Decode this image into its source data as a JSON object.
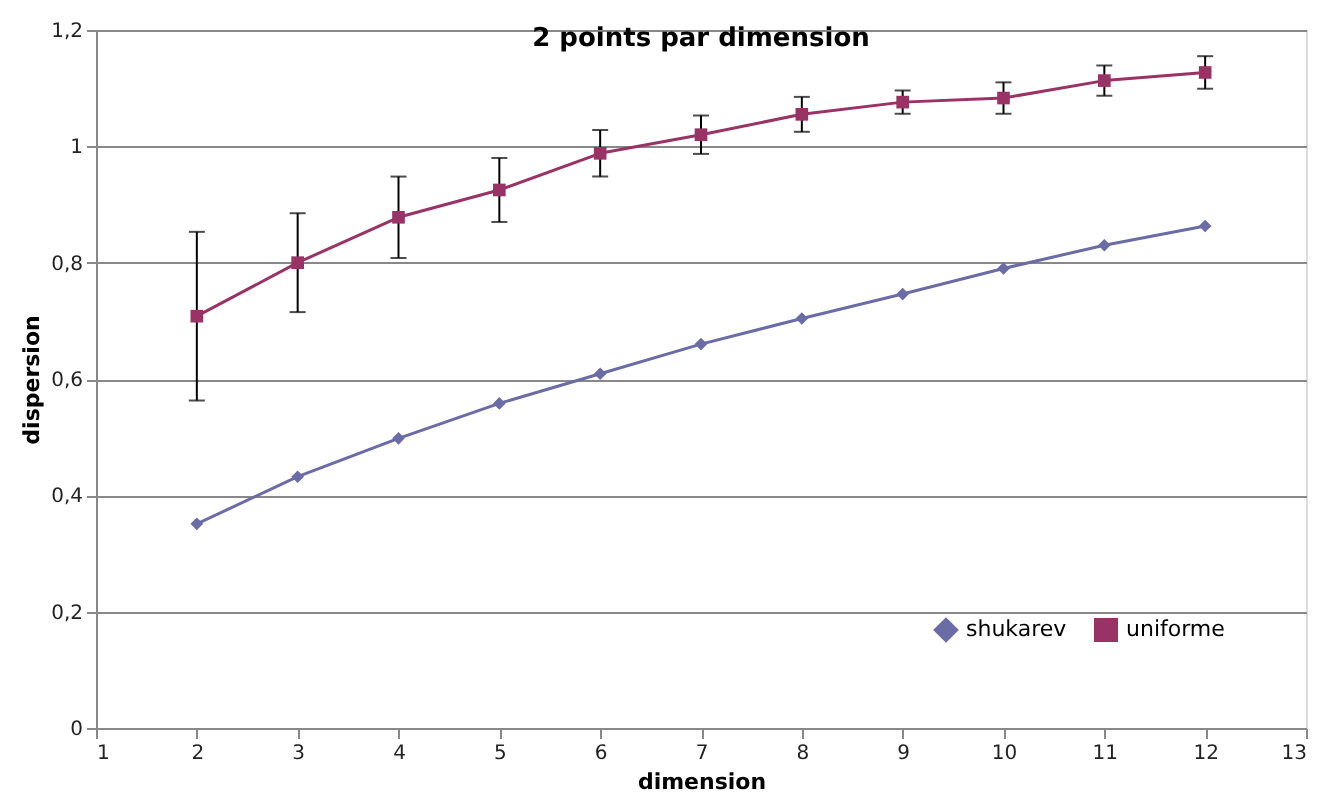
{
  "chart_data": {
    "type": "line",
    "title": "2 points par dimension",
    "xlabel": "dimension",
    "ylabel": "dispersion",
    "x": [
      2,
      3,
      4,
      5,
      6,
      7,
      8,
      9,
      10,
      11,
      12
    ],
    "xlim": [
      1,
      13
    ],
    "xticks": [
      1,
      2,
      3,
      4,
      5,
      6,
      7,
      8,
      9,
      10,
      11,
      12,
      13
    ],
    "ylim": [
      0,
      1.2
    ],
    "yticks": [
      {
        "value": 0,
        "label": "0"
      },
      {
        "value": 0.2,
        "label": "0,2"
      },
      {
        "value": 0.4,
        "label": "0,4"
      },
      {
        "value": 0.6,
        "label": "0,6"
      },
      {
        "value": 0.8,
        "label": "0,8"
      },
      {
        "value": 1,
        "label": "1"
      },
      {
        "value": 1.2,
        "label": "1,2"
      }
    ],
    "grid": "y",
    "legend": "bottom right",
    "line_style": "solid",
    "series": [
      {
        "name": "shukarev",
        "color": "#6b6ba6",
        "marker": "diamond",
        "values": [
          0.351,
          0.432,
          0.498,
          0.558,
          0.609,
          0.66,
          0.704,
          0.746,
          0.79,
          0.83,
          0.863
        ]
      },
      {
        "name": "uniforme",
        "color": "#993366",
        "marker": "square",
        "values": [
          0.708,
          0.8,
          0.878,
          0.925,
          0.988,
          1.02,
          1.055,
          1.076,
          1.083,
          1.113,
          1.127
        ],
        "errors": [
          0.145,
          0.085,
          0.07,
          0.055,
          0.04,
          0.033,
          0.03,
          0.02,
          0.027,
          0.026,
          0.028
        ]
      }
    ]
  }
}
